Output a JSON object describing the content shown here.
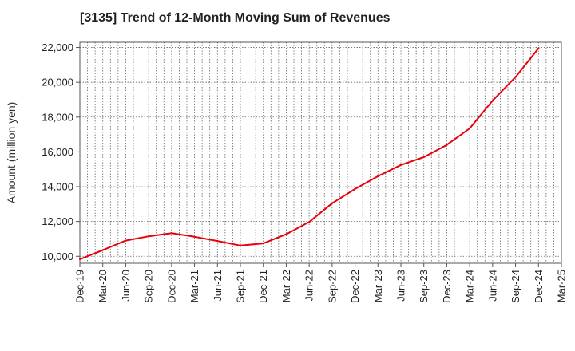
{
  "chart_data": {
    "type": "line",
    "title": "[3135]  Trend of 12-Month Moving Sum of Revenues",
    "ylabel": "Amount (million yen)",
    "xlabel": "",
    "ylim": [
      9600,
      22300
    ],
    "y_ticks": [
      10000,
      12000,
      14000,
      16000,
      18000,
      20000,
      22000
    ],
    "y_tick_labels": [
      "10,000",
      "12,000",
      "14,000",
      "16,000",
      "18,000",
      "20,000",
      "22,000"
    ],
    "x_tick_labels": [
      "Dec-19",
      "Mar-20",
      "Jun-20",
      "Sep-20",
      "Dec-20",
      "Mar-21",
      "Jun-21",
      "Sep-21",
      "Dec-21",
      "Mar-22",
      "Jun-22",
      "Sep-22",
      "Dec-22",
      "Mar-23",
      "Jun-23",
      "Sep-23",
      "Dec-23",
      "Mar-24",
      "Jun-24",
      "Sep-24",
      "Dec-24",
      "Mar-25"
    ],
    "x_minor_per_major": 3,
    "grid": true,
    "series": [
      {
        "color": "#e8000b",
        "x": [
          "Dec-19",
          "Mar-20",
          "Jun-20",
          "Sep-20",
          "Dec-20",
          "Mar-21",
          "Jun-21",
          "Sep-21",
          "Dec-21",
          "Mar-22",
          "Jun-22",
          "Sep-22",
          "Dec-22",
          "Mar-23",
          "Jun-23",
          "Sep-23",
          "Dec-23",
          "Mar-24",
          "Jun-24",
          "Sep-24",
          "Dec-24"
        ],
        "values": [
          9830,
          10350,
          10900,
          11150,
          11330,
          11120,
          10880,
          10620,
          10740,
          11270,
          11970,
          13050,
          13870,
          14600,
          15250,
          15700,
          16400,
          17350,
          18950,
          20300,
          21950
        ]
      }
    ]
  }
}
